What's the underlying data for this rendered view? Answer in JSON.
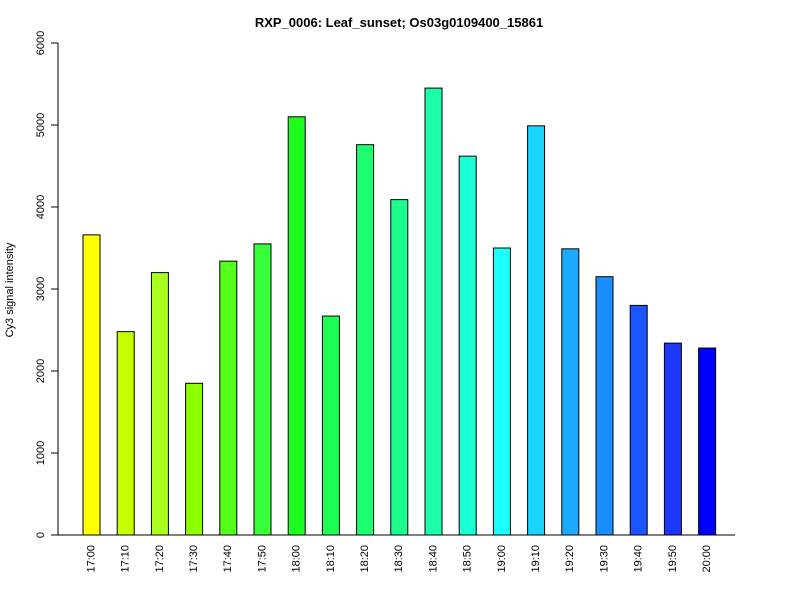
{
  "chart_data": {
    "type": "bar",
    "title": "RXP_0006: Leaf_sunset; Os03g0109400_15861",
    "xlabel": "",
    "ylabel": "Cy3 signal intensity",
    "ylim": [
      0,
      6000
    ],
    "yticks": [
      0,
      1000,
      2000,
      3000,
      4000,
      5000,
      6000
    ],
    "grid": false,
    "legend": "none",
    "categories": [
      "17:00",
      "17:10",
      "17:20",
      "17:30",
      "17:40",
      "17:50",
      "18:00",
      "18:10",
      "18:20",
      "18:30",
      "18:40",
      "18:50",
      "19:00",
      "19:10",
      "19:20",
      "19:30",
      "19:40",
      "19:50",
      "20:00"
    ],
    "values": [
      3660,
      2480,
      3200,
      1850,
      3340,
      3550,
      5100,
      2670,
      4760,
      4090,
      5450,
      4620,
      3500,
      4990,
      3490,
      3150,
      2800,
      2340,
      2280
    ],
    "colors": [
      "#FFFF00",
      "#C6FF00",
      "#AAFF1C",
      "#8DFF00",
      "#55FF1C",
      "#38FF38",
      "#1CFF1C",
      "#1CFF55",
      "#1CFF71",
      "#1CFF8D",
      "#1CFFAA",
      "#1CFFD4",
      "#1CFFFF",
      "#1CD4FF",
      "#1CAAFF",
      "#1C8DFF",
      "#1C55FF",
      "#1C38FF",
      "#0000FF"
    ]
  }
}
